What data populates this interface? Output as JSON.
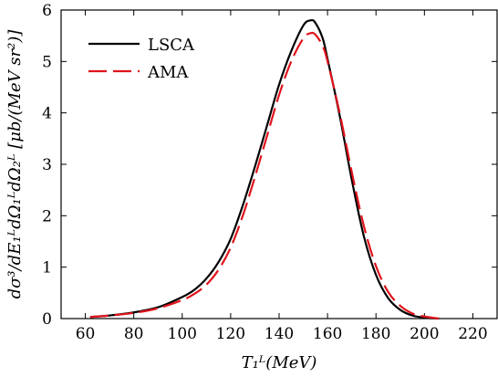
{
  "chart_data": {
    "type": "line",
    "title": "",
    "xlabel": "T₁ᴸ(MeV)",
    "ylabel": "dσ³/dE₁ᴸdΩ₁ᴸdΩ₂ᴸ [μb/(MeV sr²)]",
    "xlim": [
      50,
      230
    ],
    "ylim": [
      0,
      6
    ],
    "xticks": [
      60,
      80,
      100,
      120,
      140,
      160,
      180,
      200,
      220
    ],
    "yticks": [
      0,
      1,
      2,
      3,
      4,
      5,
      6
    ],
    "grid": false,
    "legend_position": "top-left",
    "series": [
      {
        "name": "LSCA",
        "color": "#000000",
        "dash": "solid",
        "points": [
          [
            62,
            0.03
          ],
          [
            70,
            0.06
          ],
          [
            80,
            0.12
          ],
          [
            90,
            0.22
          ],
          [
            100,
            0.42
          ],
          [
            105,
            0.56
          ],
          [
            110,
            0.78
          ],
          [
            115,
            1.1
          ],
          [
            120,
            1.55
          ],
          [
            125,
            2.2
          ],
          [
            130,
            2.95
          ],
          [
            135,
            3.75
          ],
          [
            140,
            4.55
          ],
          [
            145,
            5.2
          ],
          [
            150,
            5.7
          ],
          [
            153,
            5.8
          ],
          [
            155,
            5.75
          ],
          [
            158,
            5.45
          ],
          [
            160,
            5.05
          ],
          [
            165,
            3.95
          ],
          [
            170,
            2.7
          ],
          [
            175,
            1.6
          ],
          [
            180,
            0.85
          ],
          [
            185,
            0.4
          ],
          [
            190,
            0.17
          ],
          [
            195,
            0.06
          ],
          [
            200,
            0.02
          ],
          [
            206,
            0.0
          ]
        ]
      },
      {
        "name": "AMA",
        "color": "#e0141c",
        "dash": "dashed",
        "points": [
          [
            62,
            0.03
          ],
          [
            70,
            0.06
          ],
          [
            80,
            0.11
          ],
          [
            90,
            0.2
          ],
          [
            100,
            0.36
          ],
          [
            105,
            0.48
          ],
          [
            110,
            0.66
          ],
          [
            115,
            0.95
          ],
          [
            120,
            1.38
          ],
          [
            125,
            2.0
          ],
          [
            130,
            2.75
          ],
          [
            135,
            3.55
          ],
          [
            140,
            4.35
          ],
          [
            145,
            5.0
          ],
          [
            150,
            5.45
          ],
          [
            153,
            5.55
          ],
          [
            155,
            5.52
          ],
          [
            158,
            5.3
          ],
          [
            160,
            5.0
          ],
          [
            165,
            4.0
          ],
          [
            170,
            2.85
          ],
          [
            175,
            1.8
          ],
          [
            180,
            1.02
          ],
          [
            185,
            0.52
          ],
          [
            190,
            0.25
          ],
          [
            195,
            0.1
          ],
          [
            200,
            0.04
          ],
          [
            206,
            0.0
          ]
        ]
      }
    ]
  }
}
